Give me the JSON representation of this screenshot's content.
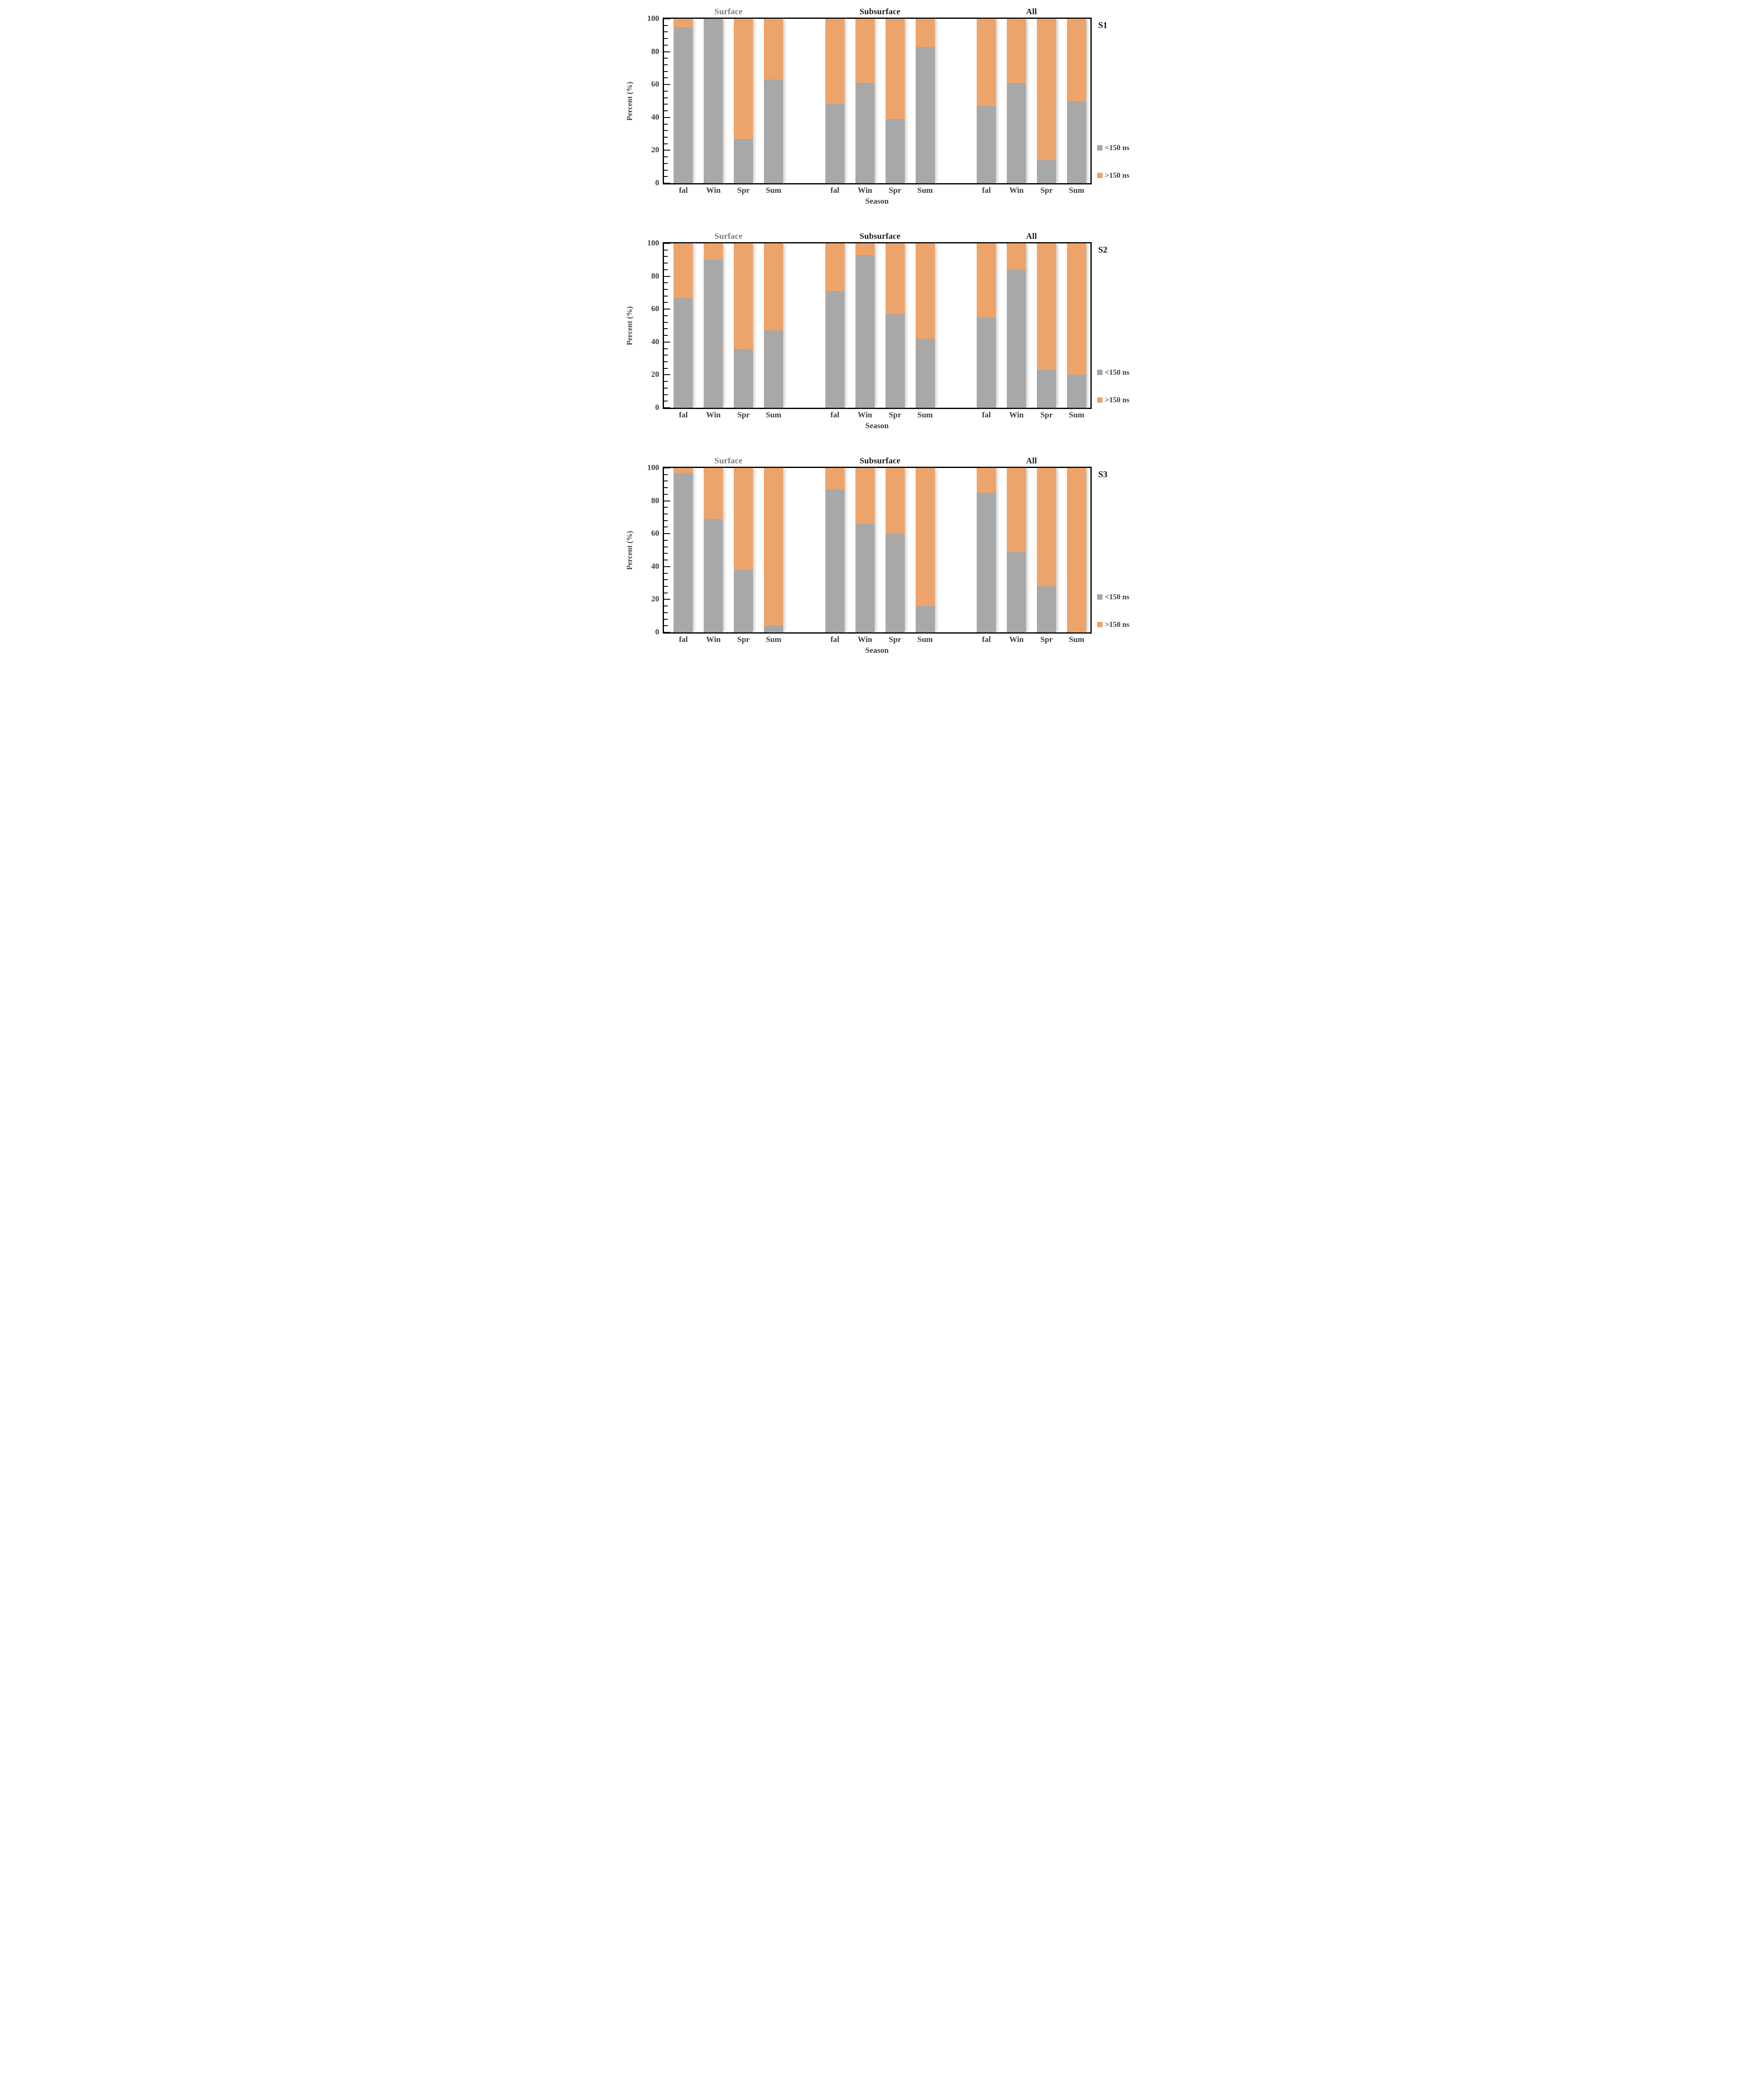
{
  "figure": {
    "y_axis": {
      "title": "Percent (%)",
      "tick_labels": [
        "100",
        "80",
        "60",
        "40",
        "20",
        "0"
      ],
      "min": 0,
      "max": 100,
      "minor_tick_step": 4,
      "major_tick_step": 20
    },
    "x_axis": {
      "title": "Season",
      "categories": [
        "fal",
        "Win",
        "Spr",
        "Sum"
      ]
    },
    "legend": {
      "items": [
        {
          "key": "lt150",
          "label": "<150 ns",
          "color": "#a8a8a8"
        },
        {
          "key": "gt150",
          "label": ">150 ns",
          "color": "#eda46b"
        }
      ]
    },
    "colors": {
      "bar_lt150": "#a8a8a8",
      "bar_gt150": "#eda46b",
      "plot_border": "#000000",
      "axis_text": "#3e3e3e",
      "group_title_surface": "#7b7b7b",
      "group_title_strong": "#1a1a1a"
    }
  },
  "chart_data": [
    {
      "type": "bar",
      "stack": "100%",
      "label": "S1",
      "ylabel": "Percent (%)",
      "xlabel": "Season",
      "ylim": [
        0,
        100
      ],
      "categories": [
        "fal",
        "Win",
        "Spr",
        "Sum"
      ],
      "groups": [
        {
          "name": "Surface",
          "series": [
            {
              "name": "<150 ns",
              "values": [
                95,
                100,
                27,
                63
              ]
            },
            {
              "name": ">150 ns",
              "values": [
                5,
                0,
                73,
                37
              ]
            }
          ]
        },
        {
          "name": "Subsurface",
          "series": [
            {
              "name": "<150 ns",
              "values": [
                48,
                61,
                39,
                83
              ]
            },
            {
              "name": ">150 ns",
              "values": [
                52,
                39,
                61,
                17
              ]
            }
          ]
        },
        {
          "name": "All",
          "series": [
            {
              "name": "<150 ns",
              "values": [
                47,
                61,
                14,
                50
              ]
            },
            {
              "name": ">150 ns",
              "values": [
                53,
                39,
                86,
                50
              ]
            }
          ]
        }
      ]
    },
    {
      "type": "bar",
      "stack": "100%",
      "label": "S2",
      "ylabel": "Percent (%)",
      "xlabel": "Season",
      "ylim": [
        0,
        100
      ],
      "categories": [
        "fal",
        "Win",
        "Spr",
        "Sum"
      ],
      "groups": [
        {
          "name": "Surface",
          "series": [
            {
              "name": "<150 ns",
              "values": [
                67,
                90,
                36,
                47
              ]
            },
            {
              "name": ">150 ns",
              "values": [
                33,
                10,
                64,
                53
              ]
            }
          ]
        },
        {
          "name": "Subsurface",
          "series": [
            {
              "name": "<150 ns",
              "values": [
                71,
                93,
                57,
                42
              ]
            },
            {
              "name": ">150 ns",
              "values": [
                29,
                7,
                43,
                58
              ]
            }
          ]
        },
        {
          "name": "All",
          "series": [
            {
              "name": "<150 ns",
              "values": [
                55,
                84,
                23,
                20
              ]
            },
            {
              "name": ">150 ns",
              "values": [
                45,
                16,
                77,
                80
              ]
            }
          ]
        }
      ]
    },
    {
      "type": "bar",
      "stack": "100%",
      "label": "S3",
      "ylabel": "Percent (%)",
      "xlabel": "Season",
      "ylim": [
        0,
        100
      ],
      "categories": [
        "fal",
        "Win",
        "Spr",
        "Sum"
      ],
      "groups": [
        {
          "name": "Surface",
          "series": [
            {
              "name": "<150 ns",
              "values": [
                97,
                69,
                38,
                4
              ]
            },
            {
              "name": ">150 ns",
              "values": [
                3,
                31,
                62,
                96
              ]
            }
          ]
        },
        {
          "name": "Subsurface",
          "series": [
            {
              "name": "<150 ns",
              "values": [
                87,
                66,
                60,
                16
              ]
            },
            {
              "name": ">150 ns",
              "values": [
                13,
                34,
                40,
                84
              ]
            }
          ]
        },
        {
          "name": "All",
          "series": [
            {
              "name": "<150 ns",
              "values": [
                85,
                49,
                28,
                0
              ]
            },
            {
              "name": ">150 ns",
              "values": [
                15,
                51,
                72,
                100
              ]
            }
          ]
        }
      ]
    }
  ]
}
